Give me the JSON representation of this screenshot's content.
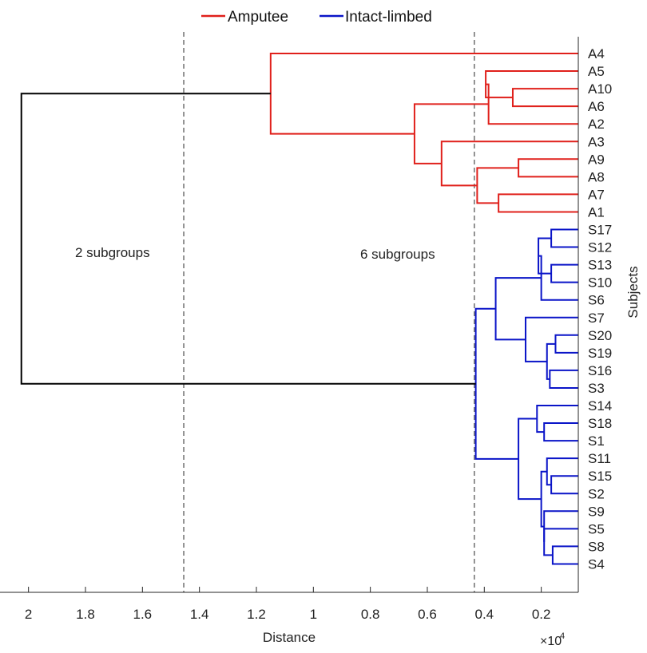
{
  "chart_data": {
    "type": "dendrogram",
    "orientation": "horizontal",
    "xlabel": "Distance",
    "ylabel": "Subjects",
    "x_scale_label": "×10",
    "x_scale_exponent": "4",
    "xlim": [
      2.1,
      0.07
    ],
    "x_ticks": [
      2,
      1.8,
      1.6,
      1.4,
      1.2,
      1,
      0.8,
      0.6,
      0.4,
      0.2
    ],
    "x_tick_labels": [
      "2",
      "1.8",
      "1.6",
      "1.4",
      "1.2",
      "1",
      "0.8",
      "0.6",
      "0.4",
      "0.2"
    ],
    "legend": [
      {
        "name": "Amputee",
        "color": "#e0201b"
      },
      {
        "name": "Intact-limbed",
        "color": "#0a14c8"
      }
    ],
    "root_color": "#000000",
    "cut_lines": [
      {
        "distance": 1.455,
        "label": "2 subgroups"
      },
      {
        "distance": 0.435,
        "label": "6 subgroups"
      }
    ],
    "leaves": [
      "A4",
      "A5",
      "A10",
      "A6",
      "A2",
      "A3",
      "A9",
      "A8",
      "A7",
      "A1",
      "S17",
      "S12",
      "S13",
      "S10",
      "S6",
      "S7",
      "S20",
      "S19",
      "S16",
      "S3",
      "S14",
      "S18",
      "S1",
      "S11",
      "S15",
      "S2",
      "S9",
      "S5",
      "S8",
      "S4"
    ],
    "merges": [
      {
        "children": [
          "A10",
          "A6"
        ],
        "distance": 0.3,
        "group": "amputee"
      },
      {
        "children": [
          "A5",
          "c1"
        ],
        "distance": 0.395,
        "group": "amputee"
      },
      {
        "children": [
          "c2",
          "A2"
        ],
        "distance": 0.385,
        "group": "amputee"
      },
      {
        "children": [
          "A9",
          "A8"
        ],
        "distance": 0.28,
        "group": "amputee"
      },
      {
        "children": [
          "A7",
          "A1"
        ],
        "distance": 0.35,
        "group": "amputee"
      },
      {
        "children": [
          "c4",
          "c5"
        ],
        "distance": 0.425,
        "group": "amputee"
      },
      {
        "children": [
          "A3",
          "c6"
        ],
        "distance": 0.55,
        "group": "amputee"
      },
      {
        "children": [
          "c3",
          "c7"
        ],
        "distance": 0.645,
        "group": "amputee"
      },
      {
        "children": [
          "A4",
          "c8"
        ],
        "distance": 1.15,
        "group": "amputee"
      },
      {
        "children": [
          "S17",
          "S12"
        ],
        "distance": 0.165,
        "group": "intact"
      },
      {
        "children": [
          "S13",
          "S10"
        ],
        "distance": 0.165,
        "group": "intact"
      },
      {
        "children": [
          "c10",
          "c11"
        ],
        "distance": 0.21,
        "group": "intact"
      },
      {
        "children": [
          "c12",
          "S6"
        ],
        "distance": 0.2,
        "group": "intact"
      },
      {
        "children": [
          "S20",
          "S19"
        ],
        "distance": 0.15,
        "group": "intact"
      },
      {
        "children": [
          "S16",
          "S3"
        ],
        "distance": 0.17,
        "group": "intact"
      },
      {
        "children": [
          "c14",
          "c15"
        ],
        "distance": 0.18,
        "group": "intact"
      },
      {
        "children": [
          "S7",
          "c16"
        ],
        "distance": 0.255,
        "group": "intact"
      },
      {
        "children": [
          "c13",
          "c17"
        ],
        "distance": 0.36,
        "group": "intact"
      },
      {
        "children": [
          "S18",
          "S1"
        ],
        "distance": 0.19,
        "group": "intact"
      },
      {
        "children": [
          "S14",
          "c19"
        ],
        "distance": 0.215,
        "group": "intact"
      },
      {
        "children": [
          "S15",
          "S2"
        ],
        "distance": 0.165,
        "group": "intact"
      },
      {
        "children": [
          "S11",
          "c21"
        ],
        "distance": 0.18,
        "group": "intact"
      },
      {
        "children": [
          "S8",
          "S4"
        ],
        "distance": 0.16,
        "group": "intact"
      },
      {
        "children": [
          "S5",
          "c23"
        ],
        "distance": 0.19,
        "group": "intact"
      },
      {
        "children": [
          "S9",
          "c24"
        ],
        "distance": 0.19,
        "group": "intact"
      },
      {
        "children": [
          "c22",
          "c25"
        ],
        "distance": 0.2,
        "group": "intact"
      },
      {
        "children": [
          "c20",
          "c26"
        ],
        "distance": 0.28,
        "group": "intact"
      },
      {
        "children": [
          "c18",
          "c27"
        ],
        "distance": 0.43,
        "group": "intact"
      },
      {
        "children": [
          "c9",
          "c28"
        ],
        "distance": 2.025,
        "group": "root"
      }
    ]
  }
}
